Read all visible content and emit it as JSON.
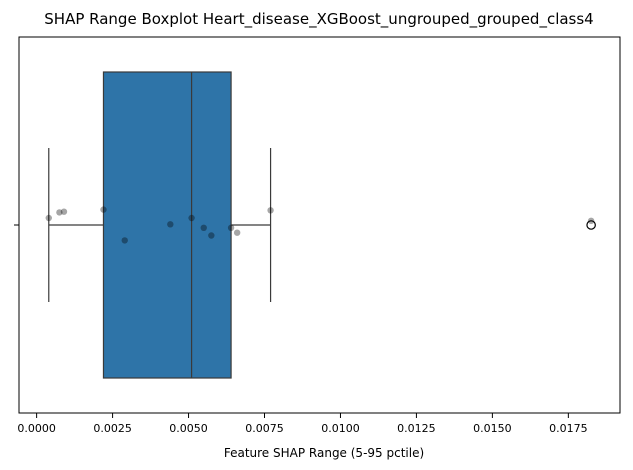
{
  "chart_data": {
    "type": "boxplot",
    "title": "SHAP Range Boxplot Heart_disease_XGBoost_ungrouped_grouped_class4",
    "xlabel": "Feature SHAP Range (5-95 pctile)",
    "ylabel": "",
    "xlim": [
      -0.00058,
      0.0192
    ],
    "xticks": [
      "0.0000",
      "0.0025",
      "0.0050",
      "0.0075",
      "0.0100",
      "0.0125",
      "0.0150",
      "0.0175"
    ],
    "xtick_values": [
      0.0,
      0.0025,
      0.005,
      0.0075,
      0.01,
      0.0125,
      0.015,
      0.0175
    ],
    "box": {
      "whisker_low": 0.0004,
      "q1": 0.0022,
      "median": 0.0051,
      "q3": 0.0064,
      "whisker_high": 0.0077,
      "outliers": [
        0.01825
      ],
      "color": "#2e74a8",
      "edge_color": "#3a3a3a"
    },
    "points": [
      {
        "x": 0.0004,
        "jitter": 0.05
      },
      {
        "x": 0.00075,
        "jitter": 0.09
      },
      {
        "x": 0.0009,
        "jitter": 0.095
      },
      {
        "x": 0.0022,
        "jitter": 0.11
      },
      {
        "x": 0.0029,
        "jitter": -0.11
      },
      {
        "x": 0.0044,
        "jitter": 0.005
      },
      {
        "x": 0.0051,
        "jitter": 0.05
      },
      {
        "x": 0.0055,
        "jitter": -0.02
      },
      {
        "x": 0.00575,
        "jitter": -0.075
      },
      {
        "x": 0.0064,
        "jitter": -0.02
      },
      {
        "x": 0.0066,
        "jitter": -0.055
      },
      {
        "x": 0.0077,
        "jitter": 0.105
      },
      {
        "x": 0.01825,
        "jitter": 0.03
      }
    ],
    "grid": false,
    "legend": "none"
  }
}
